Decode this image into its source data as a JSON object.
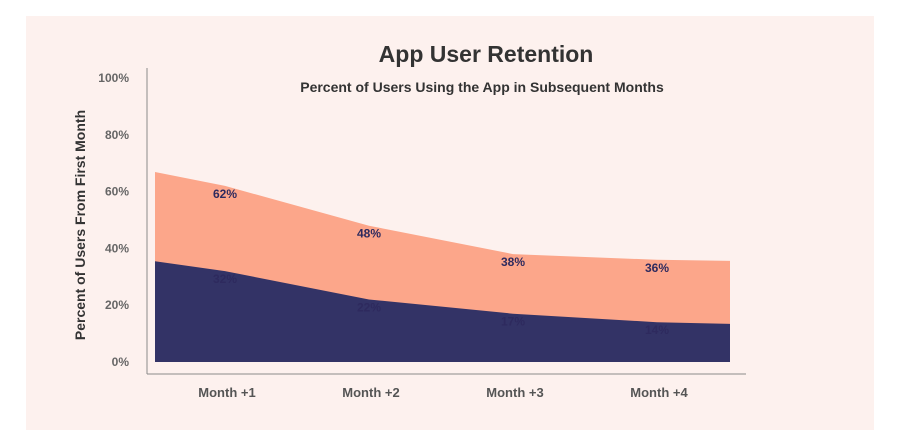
{
  "chart_data": {
    "type": "area",
    "title": "App User Retention",
    "subtitle": "Percent of Users Using the App in Subsequent Months",
    "xlabel": "",
    "ylabel": "Percent of Users From First Month",
    "categories": [
      "Month +1",
      "Month +2",
      "Month +3",
      "Month +4"
    ],
    "yticks": [
      "0%",
      "20%",
      "40%",
      "60%",
      "80%",
      "100%"
    ],
    "ylim": [
      0,
      100
    ],
    "grid": false,
    "legend": "none",
    "series": [
      {
        "values": [
          62,
          48,
          38,
          36
        ],
        "labels": [
          "62%",
          "48%",
          "38%",
          "36%"
        ],
        "color": "#fca68a"
      },
      {
        "values": [
          32,
          22,
          17,
          14
        ],
        "labels": [
          "32%",
          "22%",
          "17%",
          "14%"
        ],
        "color": "#333366"
      }
    ]
  },
  "colors": {
    "background": "#fdf1ee",
    "axis": "#8a8a8a",
    "label_text": "#2e2a5e"
  }
}
